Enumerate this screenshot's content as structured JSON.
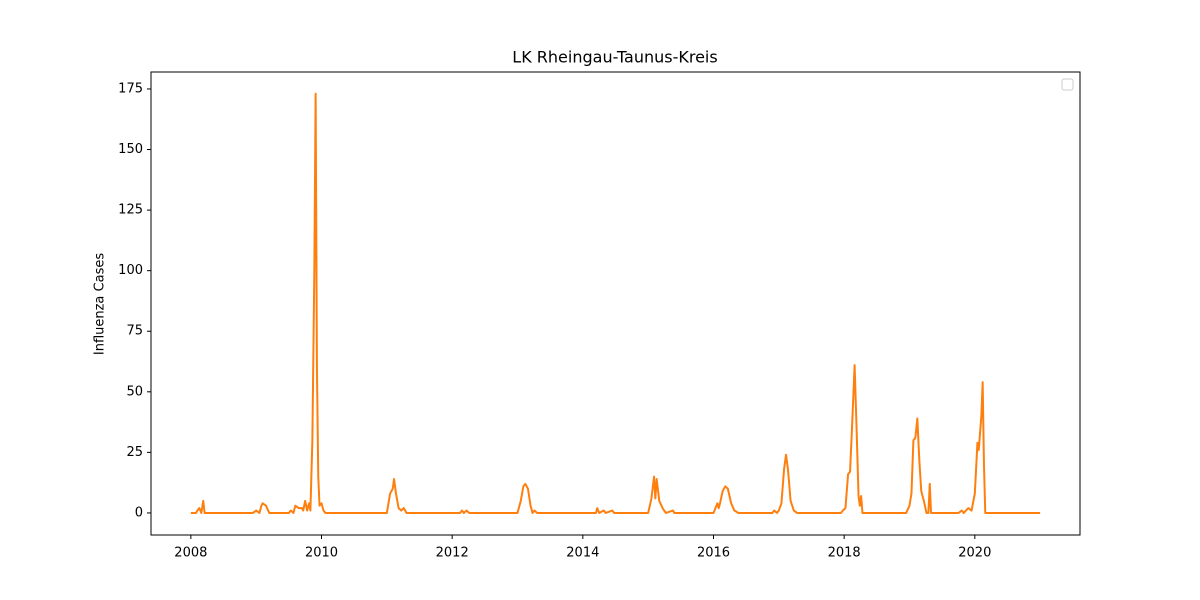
{
  "chart_data": {
    "type": "line",
    "title": "LK Rheingau-Taunus-Kreis",
    "y_label": "Influenza Cases",
    "xlim": [
      2007.39,
      2021.61
    ],
    "xticks": [
      2008,
      2010,
      2012,
      2014,
      2016,
      2018,
      2020
    ],
    "ylim": [
      -9.1,
      182
    ],
    "yticks": [
      0,
      25,
      50,
      75,
      100,
      125,
      150,
      175
    ],
    "series": [
      {
        "color": "#ff7f0e",
        "x": [
          2008.0,
          2008.08,
          2008.1,
          2008.13,
          2008.16,
          2008.19,
          2008.21,
          2008.95,
          2009.0,
          2009.05,
          2009.08,
          2009.1,
          2009.15,
          2009.2,
          2009.5,
          2009.53,
          2009.57,
          2009.6,
          2009.65,
          2009.7,
          2009.72,
          2009.75,
          2009.78,
          2009.81,
          2009.83,
          2009.86,
          2009.89,
          2009.91,
          2009.93,
          2009.95,
          2009.97,
          2010.0,
          2010.03,
          2010.06,
          2011.0,
          2011.05,
          2011.09,
          2011.11,
          2011.14,
          2011.18,
          2011.22,
          2011.26,
          2011.3,
          2012.12,
          2012.15,
          2012.18,
          2012.22,
          2012.26,
          2013.0,
          2013.05,
          2013.09,
          2013.12,
          2013.16,
          2013.2,
          2013.23,
          2013.26,
          2013.3,
          2014.2,
          2014.22,
          2014.25,
          2014.32,
          2014.35,
          2014.45,
          2014.48,
          2015.0,
          2015.05,
          2015.09,
          2015.11,
          2015.13,
          2015.17,
          2015.22,
          2015.27,
          2015.38,
          2015.4,
          2016.0,
          2016.06,
          2016.08,
          2016.1,
          2016.14,
          2016.18,
          2016.22,
          2016.27,
          2016.32,
          2016.38,
          2016.9,
          2016.93,
          2016.97,
          2017.0,
          2017.04,
          2017.08,
          2017.11,
          2017.14,
          2017.18,
          2017.23,
          2017.28,
          2017.95,
          2017.98,
          2018.02,
          2018.06,
          2018.09,
          2018.12,
          2018.16,
          2018.19,
          2018.22,
          2018.24,
          2018.26,
          2018.28,
          2018.95,
          2019.0,
          2019.03,
          2019.06,
          2019.09,
          2019.12,
          2019.15,
          2019.18,
          2019.22,
          2019.26,
          2019.29,
          2019.31,
          2019.33,
          2019.75,
          2019.8,
          2019.83,
          2019.9,
          2019.95,
          2020.0,
          2020.04,
          2020.06,
          2020.1,
          2020.12,
          2020.14,
          2020.16,
          2021.0
        ],
        "values": [
          0,
          0,
          1,
          2,
          0,
          5,
          0,
          0,
          1,
          0,
          3,
          4,
          3,
          0,
          0,
          1,
          0,
          3,
          2,
          2,
          1,
          5,
          1,
          4,
          1,
          30,
          100,
          173,
          60,
          15,
          3,
          4,
          1,
          0,
          0,
          8,
          10,
          14,
          8,
          2,
          1,
          2,
          0,
          0,
          1,
          0,
          1,
          0,
          0,
          5,
          11,
          12,
          10,
          3,
          0,
          1,
          0,
          0,
          2,
          0,
          1,
          0,
          1,
          0,
          0,
          6,
          15,
          6,
          14,
          5,
          2,
          0,
          1,
          0,
          0,
          4,
          2,
          4,
          9,
          11,
          10,
          4,
          1,
          0,
          0,
          1,
          0,
          1,
          4,
          18,
          24,
          18,
          5,
          1,
          0,
          0,
          1,
          2,
          16,
          17,
          35,
          61,
          35,
          7,
          3,
          7,
          0,
          0,
          3,
          8,
          30,
          31,
          39,
          22,
          9,
          5,
          0,
          0,
          12,
          0,
          0,
          1,
          0,
          2,
          1,
          8,
          29,
          26,
          40,
          54,
          20,
          0,
          0
        ]
      }
    ]
  }
}
